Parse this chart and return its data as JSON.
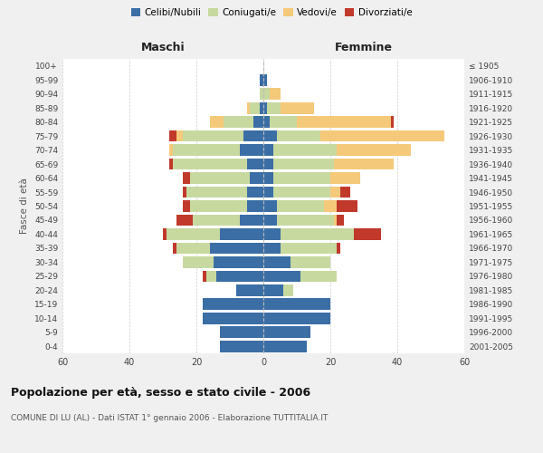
{
  "age_groups": [
    "0-4",
    "5-9",
    "10-14",
    "15-19",
    "20-24",
    "25-29",
    "30-34",
    "35-39",
    "40-44",
    "45-49",
    "50-54",
    "55-59",
    "60-64",
    "65-69",
    "70-74",
    "75-79",
    "80-84",
    "85-89",
    "90-94",
    "95-99",
    "100+"
  ],
  "birth_years": [
    "2001-2005",
    "1996-2000",
    "1991-1995",
    "1986-1990",
    "1981-1985",
    "1976-1980",
    "1971-1975",
    "1966-1970",
    "1961-1965",
    "1956-1960",
    "1951-1955",
    "1946-1950",
    "1941-1945",
    "1936-1940",
    "1931-1935",
    "1926-1930",
    "1921-1925",
    "1916-1920",
    "1911-1915",
    "1906-1910",
    "≤ 1905"
  ],
  "maschi": {
    "celibi": [
      13,
      13,
      18,
      18,
      8,
      14,
      15,
      16,
      13,
      7,
      5,
      5,
      4,
      5,
      7,
      6,
      3,
      1,
      0,
      1,
      0
    ],
    "coniugati": [
      0,
      0,
      0,
      0,
      0,
      3,
      9,
      10,
      16,
      14,
      17,
      18,
      18,
      22,
      20,
      18,
      9,
      3,
      1,
      0,
      0
    ],
    "vedovi": [
      0,
      0,
      0,
      0,
      0,
      0,
      0,
      0,
      0,
      0,
      0,
      0,
      0,
      0,
      1,
      2,
      4,
      1,
      0,
      0,
      0
    ],
    "divorziati": [
      0,
      0,
      0,
      0,
      0,
      1,
      0,
      1,
      1,
      5,
      2,
      1,
      2,
      1,
      0,
      2,
      0,
      0,
      0,
      0,
      0
    ]
  },
  "femmine": {
    "nubili": [
      13,
      14,
      20,
      20,
      6,
      11,
      8,
      5,
      5,
      4,
      4,
      3,
      3,
      3,
      3,
      4,
      2,
      1,
      0,
      1,
      0
    ],
    "coniugate": [
      0,
      0,
      0,
      0,
      3,
      11,
      12,
      17,
      22,
      17,
      14,
      17,
      17,
      18,
      19,
      13,
      8,
      4,
      2,
      0,
      0
    ],
    "vedove": [
      0,
      0,
      0,
      0,
      0,
      0,
      0,
      0,
      0,
      1,
      4,
      3,
      9,
      18,
      22,
      37,
      28,
      10,
      3,
      0,
      0
    ],
    "divorziate": [
      0,
      0,
      0,
      0,
      0,
      0,
      0,
      1,
      8,
      2,
      6,
      3,
      0,
      0,
      0,
      0,
      1,
      0,
      0,
      0,
      0
    ]
  },
  "colors": {
    "celibi_nubili": "#3a6ea5",
    "coniugati": "#c8d9a0",
    "vedovi": "#f5c97a",
    "divorziati": "#c0392b"
  },
  "xlim": 60,
  "title": "Popolazione per età, sesso e stato civile - 2006",
  "subtitle": "COMUNE DI LU (AL) - Dati ISTAT 1° gennaio 2006 - Elaborazione TUTTITALIA.IT",
  "xlabel_left": "Maschi",
  "xlabel_right": "Femmine",
  "ylabel_left": "Fasce di età",
  "bg_color": "#f0f0f0",
  "plot_bg": "#ffffff"
}
